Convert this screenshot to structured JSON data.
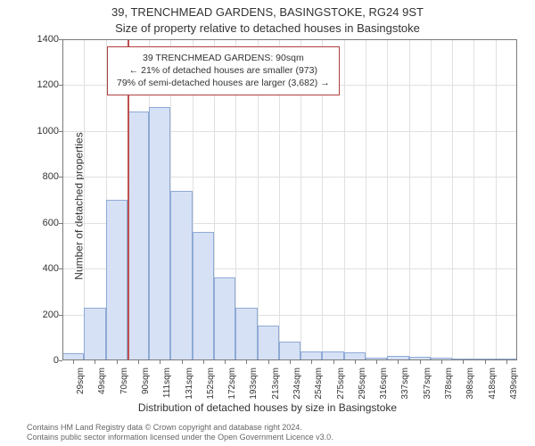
{
  "title_main": "39, TRENCHMEAD GARDENS, BASINGSTOKE, RG24 9ST",
  "title_sub": "Size of property relative to detached houses in Basingstoke",
  "y_axis_label": "Number of detached properties",
  "x_axis_label": "Distribution of detached houses by size in Basingstoke",
  "footer_line1": "Contains HM Land Registry data © Crown copyright and database right 2024.",
  "footer_line2": "Contains public sector information licensed under the Open Government Licence v3.0.",
  "chart": {
    "type": "histogram",
    "x_categories": [
      "29sqm",
      "49sqm",
      "70sqm",
      "90sqm",
      "111sqm",
      "131sqm",
      "152sqm",
      "172sqm",
      "193sqm",
      "213sqm",
      "234sqm",
      "254sqm",
      "275sqm",
      "295sqm",
      "316sqm",
      "337sqm",
      "357sqm",
      "378sqm",
      "398sqm",
      "418sqm",
      "439sqm"
    ],
    "x_tick_step": 1,
    "y_values": [
      30,
      230,
      700,
      1085,
      1105,
      740,
      560,
      360,
      230,
      150,
      80,
      38,
      38,
      35,
      10,
      20,
      15,
      12,
      5,
      3,
      3
    ],
    "ylim": [
      0,
      1400
    ],
    "ytick_step": 200,
    "bar_fill": "#d6e1f5",
    "bar_stroke": "#8faad6",
    "bar_stroke_width": 1,
    "grid_color": "#e0e0e0",
    "axis_color": "#7a7a7a",
    "background_color": "#ffffff",
    "bar_width_ratio": 1.0,
    "label_fontsize": 12,
    "tick_fontsize": 11
  },
  "marker": {
    "x_category": "90sqm",
    "color": "#c05050"
  },
  "annotation": {
    "line1": "39 TRENCHMEAD GARDENS: 90sqm",
    "line2": "← 21% of detached houses are smaller (973)",
    "line3": "79% of semi-detached houses are larger (3,682) →",
    "border_color": "#b04040",
    "background_color": "#ffffff",
    "fontsize": 10.5
  }
}
